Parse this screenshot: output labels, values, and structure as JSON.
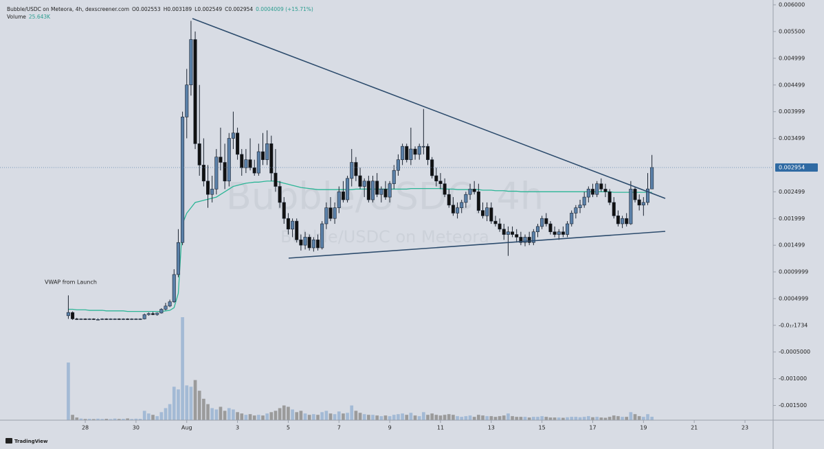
{
  "chart_data": {
    "type": "candlestick",
    "header": {
      "symbol": "Bubble/USDC on Meteora, 4h, dexscreener.com",
      "ohlc": [
        "O0.002553",
        "H0.003189",
        "L0.002549",
        "C0.002954",
        "0.0004009 (+15.71%)"
      ],
      "volume_label": "Volume",
      "volume_value": "25.643K"
    },
    "watermark": {
      "title": "Bubble/USDC, 4h",
      "subtitle": "Bubble/USDC on Meteora"
    },
    "brand": "TradingView",
    "xlim": [
      24.64,
      55.11
    ],
    "xticks": [
      28,
      30,
      {
        "value": 32,
        "label": "Aug"
      },
      {
        "value": 34,
        "label": "3"
      },
      {
        "value": 36,
        "label": "5"
      },
      {
        "value": 38,
        "label": "7"
      },
      {
        "value": 40,
        "label": "9"
      },
      {
        "value": 42,
        "label": "11"
      },
      {
        "value": 44,
        "label": "13"
      },
      {
        "value": 46,
        "label": "15"
      },
      {
        "value": 48,
        "label": "17"
      },
      {
        "value": 50,
        "label": "19"
      },
      {
        "value": 52,
        "label": "21"
      },
      {
        "value": 54,
        "label": "23"
      }
    ],
    "ylim": [
      -0.001776,
      0.00609
    ],
    "yticks": [
      {
        "value": 0.006,
        "label": "0.006000"
      },
      {
        "value": 0.0055,
        "label": "0.005500"
      },
      {
        "value": 0.004999,
        "label": "0.004999"
      },
      {
        "value": 0.004499,
        "label": "0.004499"
      },
      {
        "value": 0.003999,
        "label": "0.003999"
      },
      {
        "value": 0.003499,
        "label": "0.003499"
      },
      {
        "value": 0.002499,
        "label": "0.002499"
      },
      {
        "value": 0.001999,
        "label": "0.001999"
      },
      {
        "value": 0.001499,
        "label": "0.001499"
      },
      {
        "value": 0.0009999,
        "label": "0.0009999"
      },
      {
        "value": 0.0004999,
        "label": "0.0004999"
      },
      {
        "value": -1.734e-18,
        "label": "-0.0₁₇1734"
      },
      {
        "value": -0.0005,
        "label": "-0.0005000"
      },
      {
        "value": -0.001,
        "label": "-0.001000"
      },
      {
        "value": -0.0015,
        "label": "-0.001500"
      }
    ],
    "up_color": "#5a80a8",
    "down_color": "#111111",
    "volume_up_color": "#a3bad5",
    "volume_down_color": "#9b9b9b",
    "candles": {
      "x": [
        27.333,
        27.5,
        27.667,
        27.833,
        28,
        28.167,
        28.333,
        28.5,
        28.667,
        28.833,
        29,
        29.167,
        29.333,
        29.5,
        29.667,
        29.833,
        30,
        30.167,
        30.333,
        30.5,
        30.667,
        30.833,
        31,
        31.167,
        31.333,
        31.5,
        31.667,
        31.833,
        32,
        32.167,
        32.333,
        32.5,
        32.667,
        32.833,
        33,
        33.167,
        33.333,
        33.5,
        33.667,
        33.833,
        34,
        34.167,
        34.333,
        34.5,
        34.667,
        34.833,
        35,
        35.167,
        35.333,
        35.5,
        35.667,
        35.833,
        36,
        36.167,
        36.333,
        36.5,
        36.667,
        36.833,
        37,
        37.167,
        37.333,
        37.5,
        37.667,
        37.833,
        38,
        38.167,
        38.333,
        38.5,
        38.667,
        38.833,
        39,
        39.167,
        39.333,
        39.5,
        39.667,
        39.833,
        40,
        40.167,
        40.333,
        40.5,
        40.667,
        40.833,
        41,
        41.167,
        41.333,
        41.5,
        41.667,
        41.833,
        42,
        42.167,
        42.333,
        42.5,
        42.667,
        42.833,
        43,
        43.167,
        43.333,
        43.5,
        43.667,
        43.833,
        44,
        44.167,
        44.333,
        44.5,
        44.667,
        44.833,
        45,
        45.167,
        45.333,
        45.5,
        45.667,
        45.833,
        46,
        46.167,
        46.333,
        46.5,
        46.667,
        46.833,
        47,
        47.167,
        47.333,
        47.5,
        47.667,
        47.833,
        48,
        48.167,
        48.333,
        48.5,
        48.667,
        48.833,
        49,
        49.167,
        49.333,
        49.5,
        49.667,
        49.833,
        50,
        50.167,
        50.333
      ],
      "open": [
        0.00018,
        0.00024,
        0.00012,
        0.00011,
        0.00012,
        0.00011,
        0.00012,
        0.00011,
        0.00011,
        0.00012,
        0.00011,
        0.00012,
        0.00012,
        0.00011,
        0.00012,
        0.00011,
        0.00012,
        0.00012,
        0.00012,
        0.0002,
        0.00022,
        0.0002,
        0.00023,
        0.0003,
        0.00036,
        0.00044,
        0.00095,
        0.00155,
        0.0039,
        0.0045,
        0.00535,
        0.0034,
        0.003,
        0.0027,
        0.00245,
        0.00255,
        0.00315,
        0.00305,
        0.0027,
        0.0035,
        0.0036,
        0.0032,
        0.00295,
        0.0031,
        0.00295,
        0.00285,
        0.00325,
        0.0031,
        0.0034,
        0.00285,
        0.0026,
        0.0023,
        0.002,
        0.0018,
        0.00195,
        0.0016,
        0.0015,
        0.00165,
        0.00145,
        0.0016,
        0.00145,
        0.0019,
        0.0022,
        0.002,
        0.0022,
        0.0025,
        0.00235,
        0.00275,
        0.00305,
        0.0028,
        0.0026,
        0.0027,
        0.00235,
        0.0027,
        0.00245,
        0.00255,
        0.0024,
        0.00265,
        0.0029,
        0.0031,
        0.00335,
        0.0031,
        0.0033,
        0.0032,
        0.00335,
        0.00335,
        0.0031,
        0.0028,
        0.0027,
        0.00265,
        0.00245,
        0.00225,
        0.0021,
        0.0022,
        0.0023,
        0.00245,
        0.00255,
        0.0025,
        0.00215,
        0.00205,
        0.0022,
        0.00195,
        0.0019,
        0.0018,
        0.0017,
        0.00175,
        0.0017,
        0.00165,
        0.00155,
        0.00165,
        0.00155,
        0.00175,
        0.00185,
        0.002,
        0.0019,
        0.00175,
        0.0017,
        0.00175,
        0.0017,
        0.0019,
        0.0021,
        0.0022,
        0.00225,
        0.0024,
        0.00255,
        0.00245,
        0.00265,
        0.00255,
        0.0025,
        0.0023,
        0.00205,
        0.0019,
        0.002,
        0.0019,
        0.00255,
        0.00235,
        0.00225,
        0.0023,
        0.002553
      ],
      "high": [
        0.00056,
        0.00026,
        0.00014,
        0.00013,
        0.00013,
        0.00013,
        0.00013,
        0.00013,
        0.00013,
        0.00013,
        0.00013,
        0.00013,
        0.00013,
        0.00013,
        0.00013,
        0.00013,
        0.00013,
        0.00013,
        0.00022,
        0.00024,
        0.00025,
        0.00024,
        0.00032,
        0.00042,
        0.00048,
        0.00105,
        0.0018,
        0.004,
        0.0048,
        0.0057,
        0.0055,
        0.0045,
        0.0035,
        0.003,
        0.0028,
        0.0033,
        0.0037,
        0.0034,
        0.0036,
        0.004,
        0.0037,
        0.0033,
        0.0033,
        0.0035,
        0.0031,
        0.0034,
        0.0036,
        0.00365,
        0.00355,
        0.0033,
        0.0027,
        0.0024,
        0.0021,
        0.002,
        0.002,
        0.0017,
        0.00175,
        0.0017,
        0.00165,
        0.0017,
        0.00195,
        0.0023,
        0.0024,
        0.0023,
        0.0026,
        0.0027,
        0.0028,
        0.0033,
        0.00315,
        0.00295,
        0.00275,
        0.0028,
        0.0028,
        0.00285,
        0.0026,
        0.0027,
        0.0027,
        0.003,
        0.0032,
        0.0034,
        0.0034,
        0.0037,
        0.00335,
        0.0034,
        0.00405,
        0.0034,
        0.00315,
        0.00295,
        0.00285,
        0.00275,
        0.00255,
        0.0024,
        0.0023,
        0.00235,
        0.0025,
        0.00265,
        0.0027,
        0.00265,
        0.0023,
        0.0023,
        0.0023,
        0.00205,
        0.002,
        0.0019,
        0.00185,
        0.00185,
        0.0018,
        0.00175,
        0.0017,
        0.00175,
        0.0018,
        0.0019,
        0.00205,
        0.0021,
        0.00195,
        0.00185,
        0.0018,
        0.00185,
        0.00195,
        0.00215,
        0.00225,
        0.00235,
        0.0025,
        0.0026,
        0.00265,
        0.0027,
        0.00275,
        0.00265,
        0.00255,
        0.0024,
        0.00215,
        0.00205,
        0.0021,
        0.0027,
        0.0026,
        0.00245,
        0.0024,
        0.00285,
        0.003189
      ],
      "low": [
        0.00012,
        0.0001,
        0.0001,
        0.0001,
        0.0001,
        0.0001,
        0.0001,
        0.0001,
        0.0001,
        0.0001,
        0.0001,
        0.0001,
        0.0001,
        0.0001,
        0.0001,
        0.0001,
        0.0001,
        0.0001,
        0.00011,
        0.00018,
        0.00019,
        0.00018,
        0.00022,
        0.00028,
        0.00034,
        0.00042,
        0.0009,
        0.0015,
        0.0035,
        0.0043,
        0.0033,
        0.0028,
        0.0026,
        0.0022,
        0.0023,
        0.00245,
        0.0029,
        0.00255,
        0.0026,
        0.0033,
        0.0031,
        0.0028,
        0.00285,
        0.0029,
        0.0028,
        0.0028,
        0.003,
        0.003,
        0.0027,
        0.0025,
        0.0022,
        0.0019,
        0.0017,
        0.00165,
        0.00155,
        0.0014,
        0.00142,
        0.0014,
        0.00138,
        0.0014,
        0.00142,
        0.0018,
        0.00195,
        0.0019,
        0.0021,
        0.0023,
        0.0023,
        0.0026,
        0.0027,
        0.00255,
        0.0024,
        0.0023,
        0.0023,
        0.0024,
        0.0023,
        0.00235,
        0.0023,
        0.00255,
        0.0028,
        0.003,
        0.00305,
        0.003,
        0.0031,
        0.0031,
        0.0032,
        0.003,
        0.00275,
        0.0026,
        0.00255,
        0.0024,
        0.0022,
        0.00205,
        0.002,
        0.0021,
        0.0022,
        0.00235,
        0.00245,
        0.0021,
        0.002,
        0.00195,
        0.0019,
        0.00185,
        0.00175,
        0.0016,
        0.0013,
        0.00165,
        0.00155,
        0.0015,
        0.00148,
        0.0015,
        0.0015,
        0.00165,
        0.0018,
        0.00185,
        0.0017,
        0.00165,
        0.0016,
        0.00165,
        0.00165,
        0.00185,
        0.002,
        0.0021,
        0.0022,
        0.0023,
        0.0024,
        0.0024,
        0.0025,
        0.0024,
        0.00225,
        0.002,
        0.00185,
        0.00182,
        0.00185,
        0.00188,
        0.0023,
        0.00215,
        0.00205,
        0.00225,
        0.002549
      ],
      "close": [
        0.00024,
        0.00012,
        0.00011,
        0.00012,
        0.00011,
        0.00012,
        0.00011,
        0.00011,
        0.00012,
        0.00011,
        0.00012,
        0.00012,
        0.00011,
        0.00012,
        0.00011,
        0.00012,
        0.00012,
        0.00012,
        0.0002,
        0.00022,
        0.0002,
        0.00023,
        0.0003,
        0.00036,
        0.00044,
        0.00095,
        0.00155,
        0.0039,
        0.0045,
        0.00535,
        0.0034,
        0.003,
        0.0027,
        0.00245,
        0.00255,
        0.00315,
        0.00305,
        0.0027,
        0.0035,
        0.0036,
        0.0032,
        0.00295,
        0.0031,
        0.00295,
        0.00285,
        0.00325,
        0.0031,
        0.0034,
        0.00285,
        0.0026,
        0.0023,
        0.002,
        0.0018,
        0.00195,
        0.0016,
        0.0015,
        0.00165,
        0.00145,
        0.0016,
        0.00145,
        0.0019,
        0.0022,
        0.002,
        0.0022,
        0.0025,
        0.00235,
        0.00275,
        0.00305,
        0.0028,
        0.0026,
        0.0027,
        0.00235,
        0.0027,
        0.00245,
        0.00255,
        0.0024,
        0.00265,
        0.0029,
        0.0031,
        0.00335,
        0.0031,
        0.0033,
        0.0032,
        0.00335,
        0.00335,
        0.0031,
        0.0028,
        0.0027,
        0.00265,
        0.00245,
        0.00225,
        0.0021,
        0.0022,
        0.0023,
        0.00245,
        0.00255,
        0.0025,
        0.00215,
        0.00205,
        0.0022,
        0.00195,
        0.0019,
        0.0018,
        0.0017,
        0.00175,
        0.0017,
        0.00165,
        0.00155,
        0.00165,
        0.00155,
        0.00175,
        0.00185,
        0.002,
        0.0019,
        0.00175,
        0.0017,
        0.00175,
        0.0017,
        0.0019,
        0.0021,
        0.0022,
        0.00225,
        0.0024,
        0.00255,
        0.00245,
        0.00265,
        0.00255,
        0.0025,
        0.0023,
        0.00205,
        0.0019,
        0.002,
        0.0019,
        0.00255,
        0.00235,
        0.00225,
        0.0023,
        0.002553,
        0.002954
      ],
      "volume": [
        431000,
        40000,
        20000,
        12000,
        9000,
        10000,
        8000,
        11000,
        9000,
        10000,
        8000,
        12000,
        9000,
        10000,
        13000,
        9000,
        11000,
        10000,
        70000,
        50000,
        40000,
        30000,
        60000,
        90000,
        120000,
        250000,
        230000,
        770000,
        260000,
        250000,
        300000,
        220000,
        160000,
        120000,
        90000,
        80000,
        100000,
        70000,
        90000,
        80000,
        60000,
        50000,
        40000,
        45000,
        35000,
        40000,
        35000,
        50000,
        60000,
        70000,
        90000,
        110000,
        100000,
        80000,
        60000,
        70000,
        50000,
        40000,
        45000,
        40000,
        60000,
        70000,
        50000,
        45000,
        65000,
        50000,
        55000,
        110000,
        70000,
        55000,
        45000,
        40000,
        40000,
        35000,
        30000,
        35000,
        30000,
        40000,
        45000,
        50000,
        40000,
        55000,
        35000,
        30000,
        60000,
        40000,
        50000,
        40000,
        35000,
        40000,
        45000,
        40000,
        30000,
        25000,
        30000,
        35000,
        25000,
        40000,
        35000,
        30000,
        30000,
        25000,
        30000,
        35000,
        50000,
        30000,
        25000,
        25000,
        25000,
        20000,
        25000,
        25000,
        30000,
        25000,
        20000,
        20000,
        20000,
        18000,
        22000,
        25000,
        25000,
        22000,
        25000,
        30000,
        22000,
        25000,
        20000,
        18000,
        25000,
        35000,
        30000,
        25000,
        25000,
        60000,
        45000,
        30000,
        25000,
        45000,
        25643
      ]
    },
    "vwap": {
      "name": "VWAP from Launch",
      "color": "#2bb596",
      "values": [
        0.0003,
        0.0003,
        0.00029,
        0.00029,
        0.00029,
        0.00028,
        0.00028,
        0.00028,
        0.00028,
        0.00027,
        0.00027,
        0.00027,
        0.00027,
        0.00027,
        0.00026,
        0.00026,
        0.00026,
        0.00026,
        0.00026,
        0.00026,
        0.00026,
        0.00026,
        0.00026,
        0.00027,
        0.00028,
        0.00033,
        0.0006,
        0.0019,
        0.0021,
        0.0022,
        0.0023,
        0.00232,
        0.00234,
        0.00236,
        0.00238,
        0.0024,
        0.00245,
        0.0025,
        0.00255,
        0.0026,
        0.00262,
        0.00264,
        0.00266,
        0.00267,
        0.00268,
        0.00268,
        0.00269,
        0.0027,
        0.0027,
        0.0027,
        0.00268,
        0.00266,
        0.00264,
        0.00262,
        0.0026,
        0.00258,
        0.00257,
        0.00256,
        0.00255,
        0.00254,
        0.00254,
        0.00254,
        0.00254,
        0.00254,
        0.00254,
        0.00254,
        0.00254,
        0.00254,
        0.00255,
        0.00255,
        0.00255,
        0.00255,
        0.00255,
        0.00255,
        0.00255,
        0.00255,
        0.00255,
        0.00255,
        0.00255,
        0.00255,
        0.00255,
        0.00256,
        0.00256,
        0.00256,
        0.00256,
        0.00256,
        0.00256,
        0.00256,
        0.00256,
        0.00255,
        0.00255,
        0.00255,
        0.00254,
        0.00254,
        0.00254,
        0.00254,
        0.00254,
        0.00254,
        0.00253,
        0.00253,
        0.00253,
        0.00252,
        0.00252,
        0.00252,
        0.00251,
        0.00251,
        0.00251,
        0.0025,
        0.0025,
        0.0025,
        0.0025,
        0.0025,
        0.0025,
        0.0025,
        0.0025,
        0.0025,
        0.0025,
        0.0025,
        0.0025,
        0.0025,
        0.0025,
        0.0025,
        0.0025,
        0.0025,
        0.0025,
        0.0025,
        0.0025,
        0.0025,
        0.0025,
        0.00249,
        0.00249,
        0.00249,
        0.00249,
        0.00249,
        0.00249,
        0.00249,
        0.00249,
        0.00249,
        0.00249
      ]
    }
  }
}
